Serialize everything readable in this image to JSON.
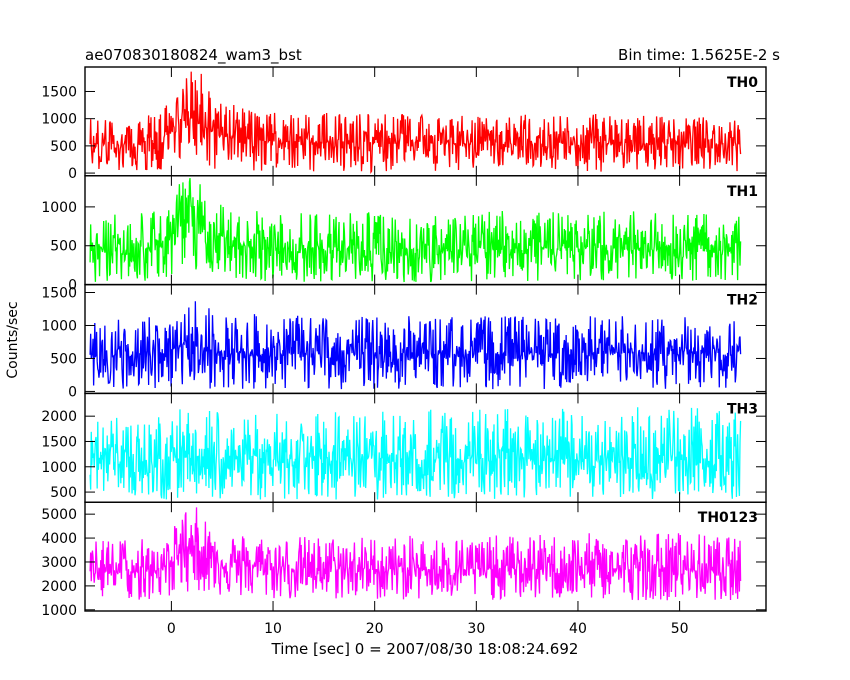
{
  "chart_data": {
    "type": "line",
    "title": "ae070830180824_wam3_bst",
    "subtitle": "Bin time: 1.5625E-2 s",
    "xlabel": "Time [sec] 0 = 2007/08/30 18:08:24.692",
    "ylabel": "Counts/sec",
    "xlim": [
      -8.5,
      58.5
    ],
    "x_ticks": [
      0,
      10,
      20,
      30,
      40,
      50
    ],
    "data_x_range": [
      -8,
      56
    ],
    "bin_time_s": 0.015625,
    "grid": false,
    "panels": [
      {
        "name": "TH0",
        "color": "#ff0000",
        "ylim": [
          -50,
          1950
        ],
        "y_ticks": [
          0,
          500,
          1000,
          1500
        ],
        "envelope": {
          "x": [
            -8,
            -4,
            -1,
            0,
            1,
            2,
            3,
            4,
            6,
            10,
            20,
            30,
            40,
            50,
            56
          ],
          "y_low": [
            20,
            20,
            60,
            120,
            150,
            150,
            120,
            80,
            60,
            30,
            20,
            20,
            20,
            20,
            20
          ],
          "y_high": [
            1000,
            1000,
            1150,
            1400,
            1650,
            1950,
            1850,
            1500,
            1300,
            1150,
            1100,
            1050,
            1100,
            1050,
            1000
          ],
          "y_mean": [
            530,
            530,
            600,
            800,
            950,
            1000,
            900,
            750,
            650,
            580,
            550,
            540,
            540,
            540,
            530
          ]
        }
      },
      {
        "name": "TH1",
        "color": "#00ff00",
        "ylim": [
          0,
          1400
        ],
        "y_ticks": [
          0,
          500,
          1000
        ],
        "envelope": {
          "x": [
            -8,
            -4,
            -1,
            0,
            1,
            2,
            3,
            4,
            6,
            10,
            20,
            30,
            40,
            50,
            56
          ],
          "y_low": [
            30,
            30,
            60,
            100,
            150,
            150,
            120,
            80,
            60,
            40,
            30,
            30,
            30,
            30,
            30
          ],
          "y_high": [
            900,
            900,
            1000,
            1150,
            1350,
            1400,
            1300,
            1150,
            1000,
            950,
            950,
            950,
            950,
            950,
            900
          ],
          "y_mean": [
            450,
            450,
            500,
            650,
            800,
            850,
            750,
            600,
            520,
            470,
            460,
            460,
            460,
            460,
            450
          ]
        }
      },
      {
        "name": "TH2",
        "color": "#0000ff",
        "ylim": [
          -30,
          1620
        ],
        "y_ticks": [
          0,
          500,
          1000,
          1500
        ],
        "envelope": {
          "x": [
            -8,
            -4,
            -1,
            0,
            1,
            2,
            3,
            4,
            6,
            10,
            20,
            30,
            40,
            50,
            56
          ],
          "y_low": [
            30,
            30,
            30,
            50,
            80,
            80,
            60,
            40,
            30,
            30,
            30,
            30,
            30,
            30,
            30
          ],
          "y_high": [
            1100,
            1100,
            1150,
            1300,
            1450,
            1500,
            1400,
            1300,
            1200,
            1150,
            1150,
            1150,
            1150,
            1150,
            1100
          ],
          "y_mean": [
            560,
            560,
            580,
            640,
            700,
            720,
            680,
            620,
            580,
            570,
            570,
            570,
            570,
            570,
            560
          ]
        }
      },
      {
        "name": "TH3",
        "color": "#00ffff",
        "ylim": [
          300,
          2450
        ],
        "y_ticks": [
          500,
          1000,
          1500,
          2000
        ],
        "envelope": {
          "x": [
            -8,
            -4,
            -1,
            0,
            1,
            2,
            3,
            4,
            6,
            10,
            20,
            30,
            40,
            50,
            56
          ],
          "y_low": [
            350,
            350,
            350,
            350,
            350,
            350,
            350,
            350,
            350,
            350,
            350,
            350,
            350,
            350,
            350
          ],
          "y_high": [
            2000,
            2000,
            2050,
            2100,
            2150,
            2200,
            2150,
            2100,
            2050,
            2050,
            2100,
            2150,
            2150,
            2200,
            2100
          ],
          "y_mean": [
            1150,
            1150,
            1150,
            1160,
            1170,
            1180,
            1170,
            1160,
            1150,
            1150,
            1150,
            1150,
            1150,
            1150,
            1150
          ]
        }
      },
      {
        "name": "TH0123",
        "color": "#ff00ff",
        "ylim": [
          950,
          5500
        ],
        "y_ticks": [
          1000,
          2000,
          3000,
          4000,
          5000
        ],
        "envelope": {
          "x": [
            -8,
            -4,
            -1,
            0,
            1,
            2,
            3,
            4,
            6,
            10,
            20,
            30,
            40,
            50,
            56
          ],
          "y_low": [
            1400,
            1400,
            1400,
            1500,
            1700,
            1800,
            1700,
            1600,
            1500,
            1400,
            1400,
            1400,
            1400,
            1400,
            1400
          ],
          "y_high": [
            3900,
            3900,
            4100,
            4600,
            5200,
            5500,
            5100,
            4700,
            4300,
            4100,
            4100,
            4100,
            4200,
            4300,
            4000
          ],
          "y_mean": [
            2600,
            2600,
            2700,
            3100,
            3600,
            3700,
            3400,
            3100,
            2900,
            2750,
            2700,
            2700,
            2700,
            2700,
            2600
          ]
        }
      }
    ]
  }
}
